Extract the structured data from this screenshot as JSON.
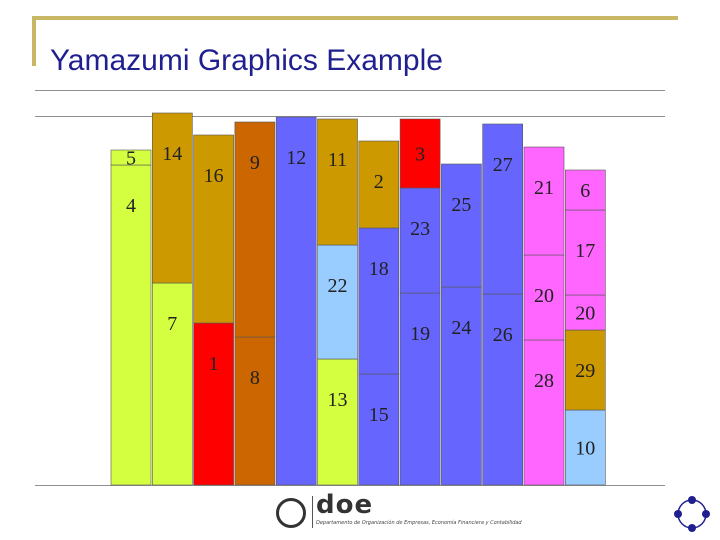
{
  "slide": {
    "title": "Yamazumi Graphics Example"
  },
  "chart_data": {
    "type": "bar",
    "stacked": true,
    "title": "",
    "xlabel": "",
    "ylabel": "",
    "ylim": [
      0,
      380
    ],
    "grid": false,
    "columns": [
      {
        "segments": [
          {
            "label": "4",
            "value": 320,
            "color": "#d4ff40"
          },
          {
            "label": "5",
            "value": 15,
            "color": "#d4ff40"
          }
        ]
      },
      {
        "segments": [
          {
            "label": "7",
            "value": 202,
            "color": "#d4ff40"
          },
          {
            "label": "14",
            "value": 170,
            "color": "#cc9900"
          }
        ]
      },
      {
        "segments": [
          {
            "label": "1",
            "value": 162,
            "color": "#ff0000"
          },
          {
            "label": "16",
            "value": 188,
            "color": "#cc9900"
          }
        ]
      },
      {
        "segments": [
          {
            "label": "8",
            "value": 148,
            "color": "#cc6600"
          },
          {
            "label": "9",
            "value": 215,
            "color": "#cc6600"
          }
        ]
      },
      {
        "segments": [
          {
            "label": "12",
            "value": 368,
            "color": "#6666ff"
          }
        ]
      },
      {
        "segments": [
          {
            "label": "13",
            "value": 126,
            "color": "#d4ff40"
          },
          {
            "label": "22",
            "value": 114,
            "color": "#99ccff"
          },
          {
            "label": "11",
            "value": 126,
            "color": "#cc9900"
          }
        ]
      },
      {
        "segments": [
          {
            "label": "15",
            "value": 111,
            "color": "#6666ff"
          },
          {
            "label": "18",
            "value": 146,
            "color": "#6666ff"
          },
          {
            "label": "2",
            "value": 87,
            "color": "#cc9900"
          }
        ]
      },
      {
        "segments": [
          {
            "label": "19",
            "value": 192,
            "color": "#6666ff"
          },
          {
            "label": "23",
            "value": 105,
            "color": "#6666ff"
          },
          {
            "label": "3",
            "value": 69,
            "color": "#ff0000"
          }
        ]
      },
      {
        "segments": [
          {
            "label": "24",
            "value": 198,
            "color": "#6666ff"
          },
          {
            "label": "25",
            "value": 123,
            "color": "#6666ff"
          }
        ]
      },
      {
        "segments": [
          {
            "label": "26",
            "value": 191,
            "color": "#6666ff"
          },
          {
            "label": "27",
            "value": 170,
            "color": "#6666ff"
          }
        ]
      },
      {
        "segments": [
          {
            "label": "28",
            "value": 145,
            "color": "#ff66ff"
          },
          {
            "label": "20",
            "value": 85,
            "color": "#ff66ff"
          },
          {
            "label": "21",
            "value": 108,
            "color": "#ff66ff"
          }
        ]
      },
      {
        "segments": [
          {
            "label": "10",
            "value": 75,
            "color": "#99ccff"
          },
          {
            "label": "29",
            "value": 80,
            "color": "#cc9900"
          },
          {
            "label": "20",
            "value": 35,
            "color": "#ff66ff"
          },
          {
            "label": "17",
            "value": 85,
            "color": "#ff66ff"
          },
          {
            "label": "6",
            "value": 40,
            "color": "#ff66ff"
          }
        ]
      }
    ]
  },
  "footer": {
    "logo_text": "doe",
    "logo_subtitle": "Departamento de Organización de Empresas, Economía Financiera y Contabilidad"
  },
  "colors": {
    "title": "#1f1f8f",
    "frame": "#c8b765",
    "bar_outline": "#555555"
  }
}
